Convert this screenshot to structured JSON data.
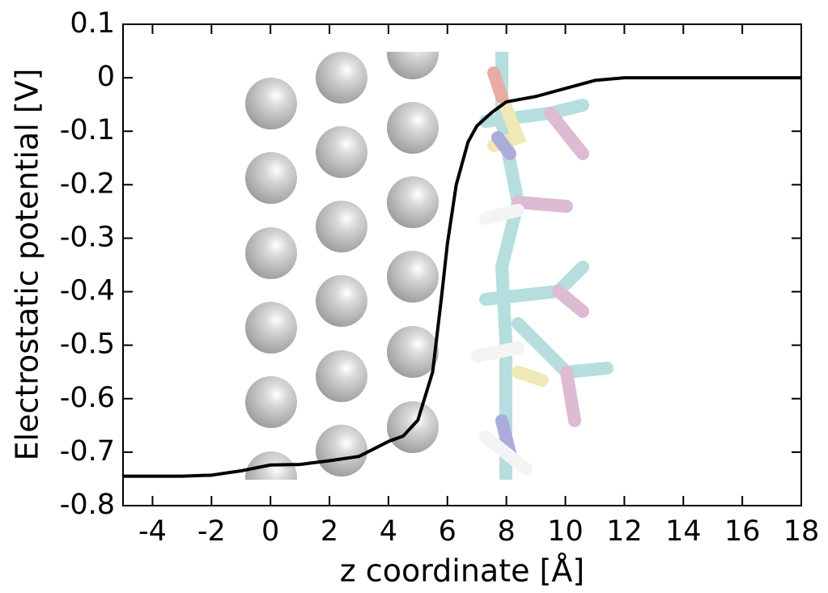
{
  "chart_data": {
    "type": "line",
    "xlabel": "z coordinate [Å]",
    "ylabel": "Electrostatic potential [V]",
    "x": [
      -5,
      -3,
      -2,
      -1,
      0,
      1,
      2,
      3,
      4,
      4.5,
      5,
      5.5,
      5.8,
      6,
      6.3,
      6.7,
      7,
      7.5,
      8,
      8.5,
      9,
      10,
      11,
      12,
      14,
      18
    ],
    "series": [
      {
        "color": "#000000",
        "values": [
          -0.745,
          -0.745,
          -0.743,
          -0.735,
          -0.724,
          -0.723,
          -0.716,
          -0.708,
          -0.68,
          -0.67,
          -0.64,
          -0.55,
          -0.41,
          -0.31,
          -0.2,
          -0.12,
          -0.09,
          -0.065,
          -0.045,
          -0.04,
          -0.035,
          -0.02,
          -0.005,
          0,
          0,
          0
        ]
      }
    ],
    "xlim": [
      -5,
      18
    ],
    "xticks": [
      -4,
      -2,
      0,
      2,
      4,
      6,
      8,
      10,
      12,
      14,
      16,
      18
    ],
    "ylim": [
      -0.8,
      0.1
    ],
    "yticks": [
      0.1,
      0,
      -0.1,
      -0.2,
      -0.3,
      -0.4,
      -0.5,
      -0.6,
      -0.7,
      -0.8
    ]
  }
}
